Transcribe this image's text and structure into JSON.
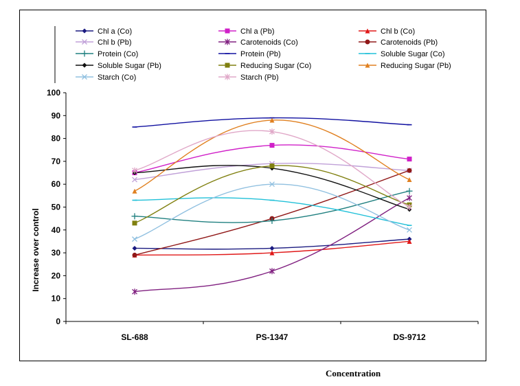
{
  "chart_data": {
    "type": "line",
    "title": "",
    "xlabel": "Concentration",
    "ylabel": "Increase over control",
    "categories": [
      "SL-688",
      "PS-1347",
      "DS-9712"
    ],
    "ylim": [
      0,
      100
    ],
    "yticks": [
      "0",
      "10",
      "20",
      "30",
      "40",
      "50",
      "60",
      "70",
      "80",
      "90",
      "100"
    ],
    "legend_position": "top",
    "series": [
      {
        "name": "Chl a (Co)",
        "values": [
          32,
          32,
          36
        ],
        "color": "#1a1a80",
        "marker": "diamond"
      },
      {
        "name": "Chl a (Pb)",
        "values": [
          65,
          77,
          71
        ],
        "color": "#d020c8",
        "marker": "square"
      },
      {
        "name": "Chl b (Co)",
        "values": [
          29,
          30,
          35
        ],
        "color": "#e01818",
        "marker": "triangle"
      },
      {
        "name": "Chl b (Pb)",
        "values": [
          62,
          69,
          66
        ],
        "color": "#c0a0d8",
        "marker": "x"
      },
      {
        "name": "Carotenoids (Co)",
        "values": [
          13,
          22,
          54
        ],
        "color": "#802080",
        "marker": "star"
      },
      {
        "name": "Carotenoids (Pb)",
        "values": [
          29,
          45,
          66
        ],
        "color": "#901818",
        "marker": "circle"
      },
      {
        "name": "Protein (Co)",
        "values": [
          46,
          44,
          57
        ],
        "color": "#208080",
        "marker": "plus"
      },
      {
        "name": "Protein (Pb)",
        "values": [
          85,
          89,
          86
        ],
        "color": "#1010a0",
        "marker": "dash"
      },
      {
        "name": "Soluble Sugar (Co)",
        "values": [
          53,
          53,
          42
        ],
        "color": "#20c0d8",
        "marker": "dash"
      },
      {
        "name": "Soluble Sugar (Pb)",
        "values": [
          65,
          67,
          49
        ],
        "color": "#101010",
        "marker": "diamond"
      },
      {
        "name": "Reducing Sugar (Co)",
        "values": [
          43,
          68,
          51
        ],
        "color": "#808010",
        "marker": "square"
      },
      {
        "name": "Reducing Sugar (Pb)",
        "values": [
          57,
          88,
          62
        ],
        "color": "#e08020",
        "marker": "triangle"
      },
      {
        "name": "Starch (Co)",
        "values": [
          36,
          60,
          40
        ],
        "color": "#90c0e0",
        "marker": "x"
      },
      {
        "name": "Starch (Pb)",
        "values": [
          66,
          83,
          50
        ],
        "color": "#e0a8c8",
        "marker": "star"
      }
    ]
  }
}
